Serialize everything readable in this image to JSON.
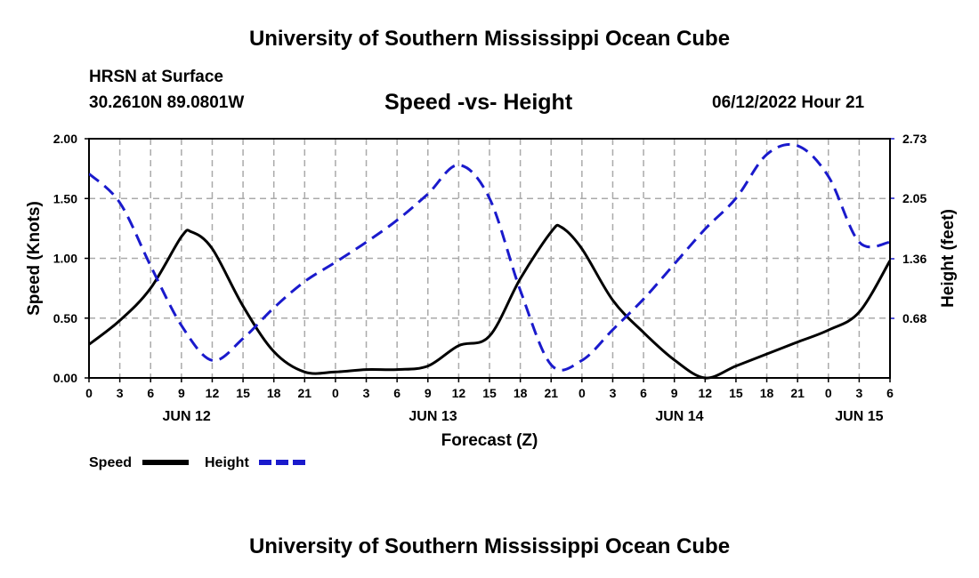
{
  "header": {
    "title_top": "University of Southern Mississippi Ocean Cube",
    "station": "HRSN at Surface",
    "coords": "30.2610N  89.0801W",
    "plot_title": "Speed -vs- Height",
    "run_time": "06/12/2022 Hour 21",
    "title_bottom": "University of Southern Mississippi Ocean Cube"
  },
  "colors": {
    "speed": "#000000",
    "height": "#1a1acc",
    "grid": "#aaaaaa"
  },
  "chart_data": {
    "type": "line",
    "title": "Speed -vs- Height",
    "xlabel": "Forecast (Z)",
    "ylabel": "Speed (Knots)",
    "y2label": "Height (feet)",
    "xlim": [
      0,
      78
    ],
    "ylim": [
      0,
      2.0
    ],
    "y2lim": [
      0,
      2.73
    ],
    "yticks": [
      "0.00",
      "0.50",
      "1.00",
      "1.50",
      "2.00"
    ],
    "y2ticks": [
      "0.68",
      "1.36",
      "2.05",
      "2.73"
    ],
    "xtick_labels": [
      "0",
      "3",
      "6",
      "9",
      "12",
      "15",
      "18",
      "21",
      "0",
      "3",
      "6",
      "9",
      "12",
      "15",
      "18",
      "21",
      "0",
      "3",
      "6",
      "9",
      "12",
      "15",
      "18",
      "21",
      "0",
      "3",
      "6"
    ],
    "date_labels": [
      {
        "label": "JUN 12",
        "hour": 9.5
      },
      {
        "label": "JUN 13",
        "hour": 33.5
      },
      {
        "label": "JUN 14",
        "hour": 57.5
      },
      {
        "label": "JUN 15",
        "hour": 75
      }
    ],
    "grid": true,
    "series": [
      {
        "name": "Speed",
        "axis": "left",
        "style": "solid",
        "x": [
          0,
          3,
          6,
          9,
          10,
          12,
          15,
          18,
          21,
          24,
          27,
          30,
          33,
          36,
          39,
          42,
          45,
          46,
          48,
          51,
          54,
          57,
          60,
          63,
          66,
          69,
          72,
          75,
          78
        ],
        "values": [
          0.28,
          0.48,
          0.75,
          1.18,
          1.22,
          1.08,
          0.6,
          0.22,
          0.05,
          0.05,
          0.07,
          0.07,
          0.1,
          0.27,
          0.35,
          0.83,
          1.22,
          1.26,
          1.08,
          0.65,
          0.38,
          0.15,
          0.0,
          0.1,
          0.2,
          0.3,
          0.4,
          0.55,
          0.98
        ]
      },
      {
        "name": "Height",
        "axis": "right",
        "style": "dashed",
        "x": [
          0,
          3,
          6,
          9,
          12,
          15,
          18,
          21,
          24,
          27,
          30,
          33,
          36,
          39,
          42,
          45,
          48,
          51,
          54,
          57,
          60,
          63,
          66,
          69,
          72,
          75,
          78
        ],
        "values": [
          2.33,
          2.0,
          1.28,
          0.6,
          0.2,
          0.45,
          0.8,
          1.1,
          1.32,
          1.55,
          1.8,
          2.1,
          2.43,
          2.05,
          1.0,
          0.15,
          0.2,
          0.55,
          0.9,
          1.3,
          1.7,
          2.05,
          2.55,
          2.65,
          2.3,
          1.55,
          1.55
        ]
      }
    ],
    "legend": [
      {
        "label": "Speed",
        "style": "solid"
      },
      {
        "label": "Height",
        "style": "dashed"
      }
    ],
    "legend_position": "bottom-left"
  }
}
